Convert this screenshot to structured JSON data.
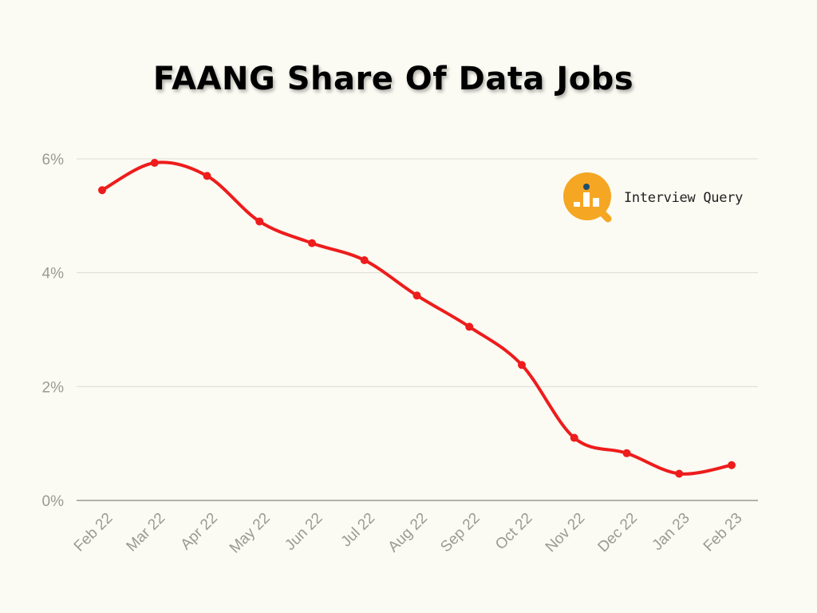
{
  "chart_data": {
    "type": "line",
    "title": "FAANG Share Of Data Jobs",
    "categories": [
      "Feb 22",
      "Mar 22",
      "Apr 22",
      "May 22",
      "Jun 22",
      "Jul 22",
      "Aug 22",
      "Sep 22",
      "Oct 22",
      "Nov 22",
      "Dec 22",
      "Jan 23",
      "Feb 23"
    ],
    "series": [
      {
        "values": [
          5.45,
          5.93,
          5.7,
          4.9,
          4.52,
          4.22,
          3.6,
          3.05,
          2.38,
          1.1,
          0.83,
          0.47,
          0.62
        ]
      }
    ],
    "yticks": [
      "0%",
      "2%",
      "4%",
      "6%"
    ],
    "ylim": [
      0,
      6
    ],
    "grid": true,
    "xlabel": "",
    "ylabel": "",
    "line_color": "#ee1c1c"
  },
  "logo": {
    "text": "Interview Query",
    "icon": "magnifier-bar-chart-icon",
    "color": "#f5a623"
  }
}
